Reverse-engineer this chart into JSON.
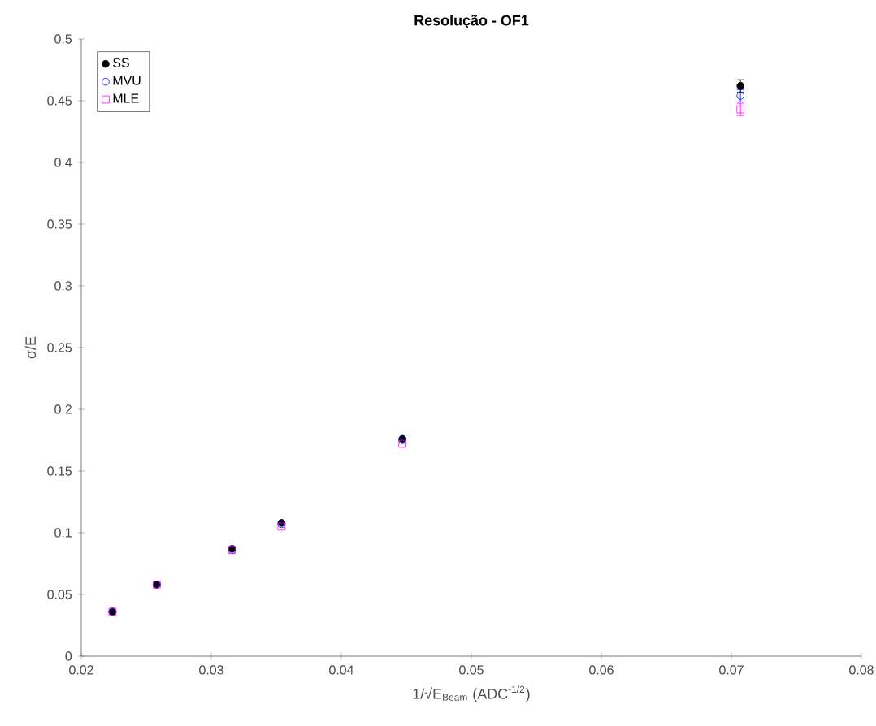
{
  "chart_data": {
    "type": "scatter",
    "title": "Resolução - OF1",
    "xlabel": "1/√E$_{Beam}$ (ADC$^{-1/2}$)",
    "ylabel": "σ/E",
    "x": [
      0.0224,
      0.0258,
      0.0316,
      0.0354,
      0.0447,
      0.0707
    ],
    "series": [
      {
        "name": "SS",
        "color": "#000000",
        "marker": "circle",
        "values": [
          0.036,
          0.058,
          0.087,
          0.108,
          0.176,
          0.462
        ],
        "errors": [
          null,
          null,
          null,
          null,
          null,
          0.005
        ]
      },
      {
        "name": "MVU",
        "color": "#0000ff",
        "marker": "circle",
        "values": [
          0.036,
          0.058,
          0.086,
          0.107,
          0.175,
          0.454
        ],
        "errors": [
          null,
          null,
          null,
          null,
          null,
          0.005
        ]
      },
      {
        "name": "MLE",
        "color": "#ff00ff",
        "marker": "square",
        "values": [
          0.036,
          0.058,
          0.086,
          0.105,
          0.172,
          0.443
        ],
        "errors": [
          null,
          null,
          null,
          null,
          null,
          0.005
        ]
      }
    ],
    "xlim": [
      0.02,
      0.08
    ],
    "xticks": [
      0.02,
      0.03,
      0.04,
      0.05,
      0.06,
      0.07,
      0.08
    ],
    "ylim": [
      0,
      0.5
    ],
    "yticks": [
      0,
      0.05,
      0.1,
      0.15,
      0.2,
      0.25,
      0.3,
      0.35,
      0.4,
      0.45,
      0.5
    ],
    "grid": false,
    "legend": "top left"
  }
}
